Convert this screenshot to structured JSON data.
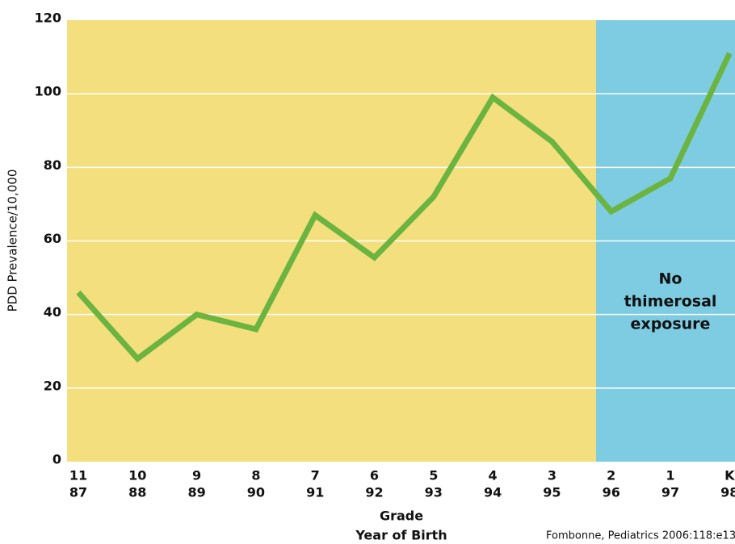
{
  "chart_data": {
    "type": "line",
    "categories": [
      "11",
      "10",
      "9",
      "8",
      "7",
      "6",
      "5",
      "4",
      "3",
      "2",
      "1",
      "K"
    ],
    "birth_years": [
      "87",
      "88",
      "89",
      "90",
      "91",
      "92",
      "93",
      "94",
      "95",
      "96",
      "97",
      "98"
    ],
    "series": [
      {
        "name": "PDD Prevalence",
        "color": "#6bb440",
        "values": [
          46,
          28,
          40,
          36,
          67,
          55.5,
          72,
          99,
          87,
          68,
          77,
          111
        ]
      }
    ],
    "ylim": [
      0,
      120
    ],
    "yticks": [
      0,
      20,
      40,
      60,
      80,
      100,
      120
    ],
    "grid": true,
    "y_label": "PDD Prevalence/10,000",
    "x_label": [
      "Grade",
      "Year of Birth"
    ],
    "annotation": [
      "No",
      "thimerosal",
      "exposure"
    ],
    "source": "Fombonne, Pediatrics 2006:118:e13"
  }
}
